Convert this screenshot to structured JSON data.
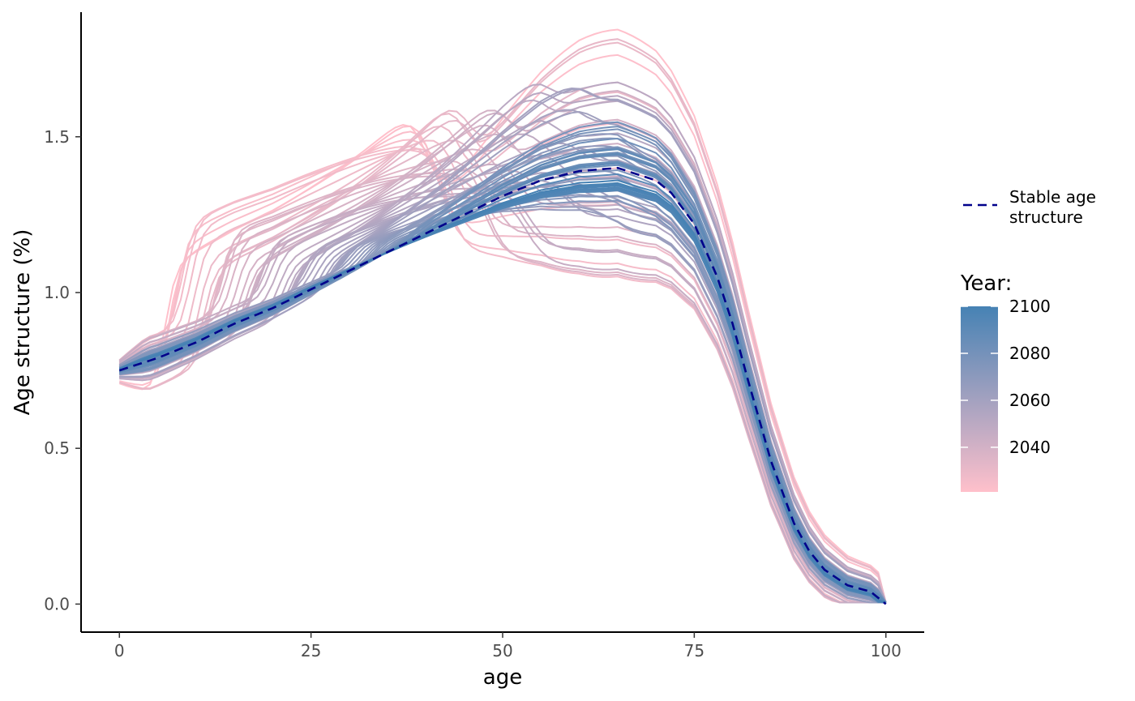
{
  "chart_data": {
    "type": "line",
    "xlabel": "age",
    "ylabel": "Age structure (%)",
    "xlim": [
      -5,
      105
    ],
    "ylim": [
      -0.09,
      1.9
    ],
    "x_ticks": [
      {
        "value": 0,
        "label": "0"
      },
      {
        "value": 25,
        "label": "25"
      },
      {
        "value": 50,
        "label": "50"
      },
      {
        "value": 75,
        "label": "75"
      },
      {
        "value": 100,
        "label": "100"
      }
    ],
    "y_ticks": [
      {
        "value": 0.0,
        "label": "0.0"
      },
      {
        "value": 0.5,
        "label": "0.5"
      },
      {
        "value": 1.0,
        "label": "1.0"
      },
      {
        "value": 1.5,
        "label": "1.5"
      }
    ],
    "grid": false,
    "years": {
      "first": 2021,
      "last": 2100
    },
    "color_scale": {
      "low": "#ffc0cb",
      "high": "#4682b4",
      "breaks": [
        {
          "value": 2040,
          "label": "2040"
        },
        {
          "value": 2060,
          "label": "2060"
        },
        {
          "value": 2080,
          "label": "2080"
        },
        {
          "value": 2100,
          "label": "2100"
        }
      ]
    },
    "stable_age_structure": {
      "name": "Stable age\nstructure",
      "color": "#00008b",
      "style": "dashed",
      "x": [
        0,
        5,
        10,
        15,
        20,
        25,
        30,
        35,
        40,
        45,
        50,
        55,
        60,
        65,
        70,
        72,
        75,
        78,
        80,
        82,
        85,
        88,
        90,
        92,
        95,
        98,
        100
      ],
      "y": [
        0.75,
        0.79,
        0.84,
        0.9,
        0.95,
        1.01,
        1.07,
        1.13,
        1.19,
        1.25,
        1.31,
        1.36,
        1.39,
        1.4,
        1.36,
        1.32,
        1.22,
        1.05,
        0.9,
        0.72,
        0.46,
        0.26,
        0.17,
        0.11,
        0.06,
        0.04,
        0.0
      ]
    }
  },
  "legend": {
    "line_label": "Stable age\nstructure",
    "year_title": "Year:"
  }
}
